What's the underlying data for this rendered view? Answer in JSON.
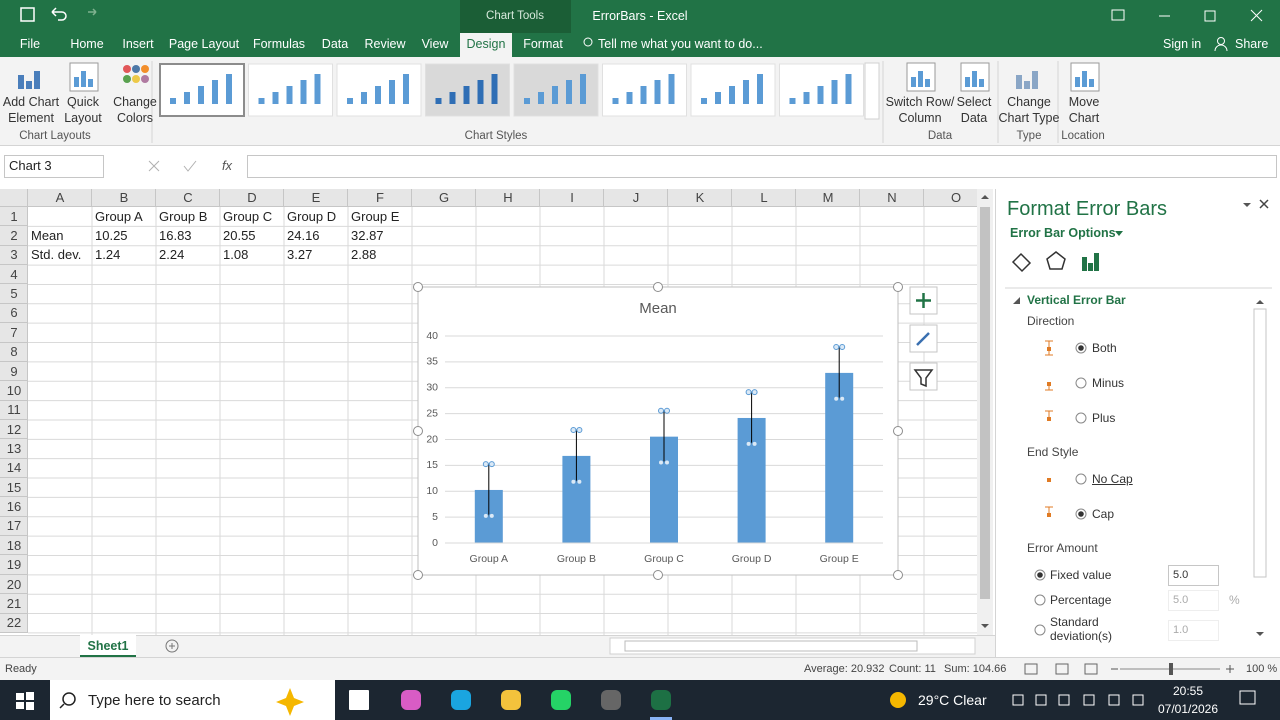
{
  "app": {
    "context_tab": "Chart Tools",
    "title": "ErrorBars - Excel"
  },
  "tabs": [
    "File",
    "Home",
    "Insert",
    "Page Layout",
    "Formulas",
    "Data",
    "Review",
    "View",
    "Design",
    "Format"
  ],
  "tell_me": "Tell me what you want to do...",
  "sign_in": "Sign in",
  "share": "Share",
  "ribbon": {
    "buttons": [
      [
        "Add Chart",
        "Element"
      ],
      [
        "Quick",
        "Layout"
      ],
      [
        "Change",
        "Colors"
      ],
      [
        "Switch Row/",
        "Column"
      ],
      [
        "Select",
        "Data"
      ],
      [
        "Change",
        "Chart Type"
      ],
      [
        "Move",
        "Chart"
      ]
    ],
    "groups": [
      "Chart Layouts",
      "Chart Styles",
      "Data",
      "Type",
      "Location"
    ]
  },
  "name_box": "Chart 3",
  "fx": "fx",
  "columns": [
    "A",
    "B",
    "C",
    "D",
    "E",
    "F",
    "G",
    "H",
    "I",
    "J",
    "K",
    "L",
    "M",
    "N",
    "O"
  ],
  "row_numbers": [
    1,
    2,
    3,
    4,
    5,
    6,
    7,
    8,
    9,
    10,
    11,
    12,
    13,
    14,
    15,
    16,
    17,
    18,
    19,
    20,
    21,
    22
  ],
  "cells": {
    "B1": "Group A",
    "C1": "Group B",
    "D1": "Group C",
    "E1": "Group D",
    "F1": "Group E",
    "A2": "Mean",
    "B2": 10.25,
    "C2": 16.83,
    "D2": 20.55,
    "E2": 24.16,
    "F2": 32.87,
    "A3": "Std. dev.",
    "B3": 1.24,
    "C3": 2.24,
    "D3": 1.08,
    "E3": 3.27,
    "F3": 2.88
  },
  "chart_data": {
    "type": "bar",
    "title": "Mean",
    "categories": [
      "Group A",
      "Group B",
      "Group C",
      "Group D",
      "Group E"
    ],
    "values": [
      10.25,
      16.83,
      20.55,
      24.16,
      32.87
    ],
    "error": 5,
    "color": "#5b9bd5",
    "ylim": [
      0,
      40
    ],
    "yticks": [
      0,
      5,
      10,
      15,
      20,
      25,
      30,
      35,
      40
    ],
    "grid": true
  },
  "panel": {
    "title": "Format Error Bars",
    "options": "Error Bar Options",
    "section": "Vertical Error Bar",
    "direction": "Direction",
    "direction_options": [
      "Both",
      "Minus",
      "Plus"
    ],
    "end_style": "End Style",
    "end_options": [
      "No Cap",
      "Cap"
    ],
    "error_amount": "Error Amount",
    "amount_options": [
      "Fixed value",
      "Percentage",
      "Standard deviation(s)"
    ],
    "amount_inputs": [
      "5.0",
      "5.0",
      "1.0"
    ],
    "percent_sign": "%"
  },
  "sheet_tab": "Sheet1",
  "status": {
    "ready": "Ready",
    "average": "Average: 20.932",
    "count": "Count: 11",
    "sum": "Sum: 104.66",
    "zoom": "100 %"
  },
  "taskbar": {
    "search": "Type here to search",
    "weather": "29°C Clear",
    "time": "20:55",
    "date": "07/01/2026"
  }
}
